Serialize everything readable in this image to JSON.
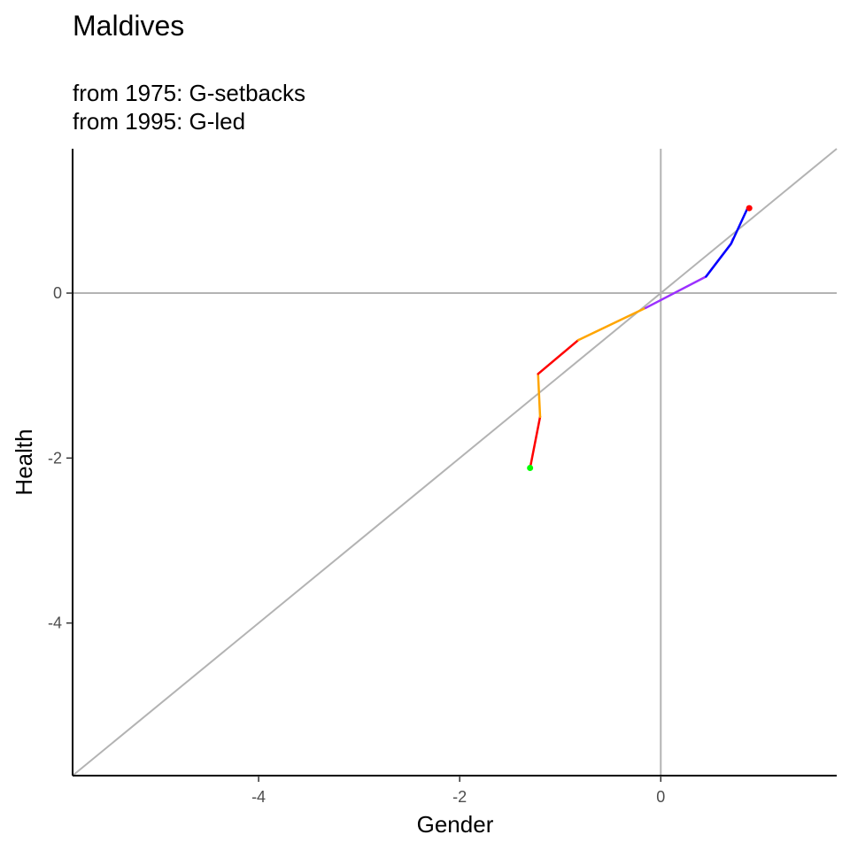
{
  "chart_data": {
    "type": "line",
    "title": "Maldives",
    "subtitle_lines": [
      "from 1975:  G-setbacks",
      "from 1995:  G-led"
    ],
    "xlabel": "Gender",
    "ylabel": "Health",
    "xlim": [
      -5.85,
      1.75
    ],
    "ylim": [
      -5.85,
      1.75
    ],
    "x_ticks": [
      -4,
      -2,
      0
    ],
    "x_tick_labels": [
      "-4",
      "-2",
      "0"
    ],
    "y_ticks": [
      -4,
      -2,
      0
    ],
    "y_tick_labels": [
      "-4",
      "-2",
      "0"
    ],
    "reference_lines": {
      "diagonal_y_equals_x": true,
      "x_zero_line": true,
      "y_zero_line": true,
      "color": "#b3b3b3"
    },
    "grid": false,
    "path_segments": [
      {
        "color": "#ff0000",
        "points": [
          [
            -1.3,
            -2.12
          ],
          [
            -1.2,
            -1.5
          ]
        ]
      },
      {
        "color": "#ffa500",
        "points": [
          [
            -1.2,
            -1.5
          ],
          [
            -1.22,
            -0.98
          ]
        ]
      },
      {
        "color": "#ff0000",
        "points": [
          [
            -1.22,
            -0.98
          ],
          [
            -0.82,
            -0.57
          ]
        ]
      },
      {
        "color": "#ffa500",
        "points": [
          [
            -0.82,
            -0.57
          ],
          [
            -0.15,
            -0.18
          ]
        ]
      },
      {
        "color": "#9b30ff",
        "points": [
          [
            -0.15,
            -0.18
          ],
          [
            0.45,
            0.2
          ],
          [
            0.7,
            0.6
          ],
          [
            0.72,
            0.66
          ]
        ]
      },
      {
        "color": "#0000ff",
        "points": [
          [
            0.45,
            0.2
          ],
          [
            0.7,
            0.6
          ],
          [
            0.86,
            1.02
          ]
        ]
      }
    ],
    "start_point": {
      "x": -1.3,
      "y": -2.12,
      "color": "#00ff00"
    },
    "end_point": {
      "x": 0.88,
      "y": 1.03,
      "color": "#ff0000"
    }
  }
}
